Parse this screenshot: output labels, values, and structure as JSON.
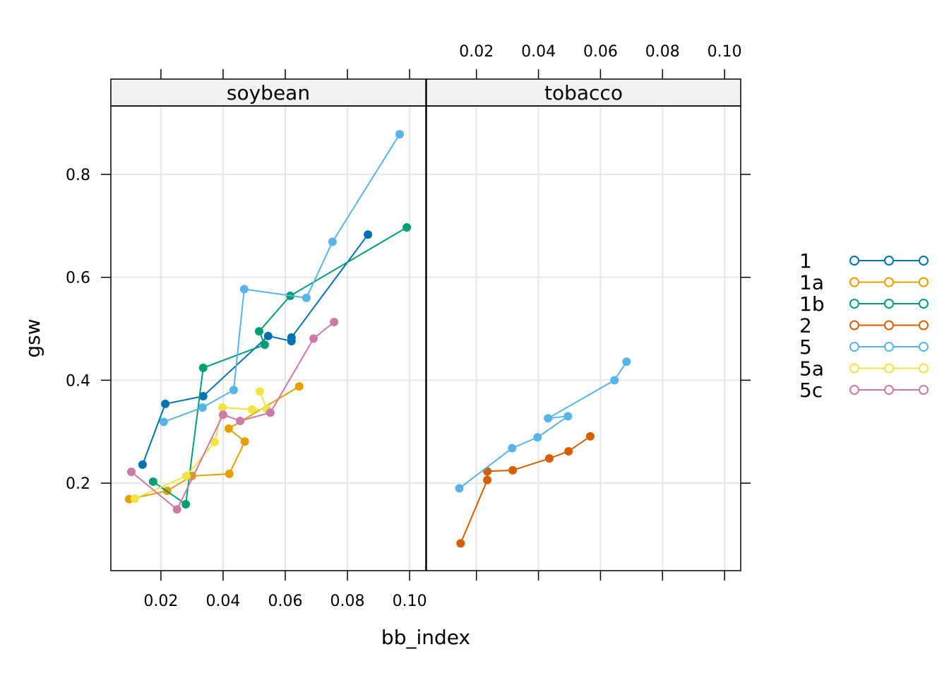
{
  "chart_data": {
    "type": "line",
    "xlabel": "bb_index",
    "ylabel": "gsw",
    "xlim": [
      0.0039,
      0.1052
    ],
    "ylim": [
      0.03,
      0.933
    ],
    "x_ticks": [
      "0.02",
      "0.04",
      "0.06",
      "0.08",
      "0.10"
    ],
    "x_tick_values": [
      0.02,
      0.04,
      0.06,
      0.08,
      0.1
    ],
    "y_ticks": [
      "0.2",
      "0.4",
      "0.6",
      "0.8"
    ],
    "y_tick_values": [
      0.2,
      0.4,
      0.6,
      0.8
    ],
    "grid": true,
    "legend_position": "right",
    "legend": [
      {
        "name": "1",
        "color": "#0072B2"
      },
      {
        "name": "1a",
        "color": "#E69F00"
      },
      {
        "name": "1b",
        "color": "#009E73"
      },
      {
        "name": "2",
        "color": "#D55E00"
      },
      {
        "name": "5",
        "color": "#56B4E9"
      },
      {
        "name": "5a",
        "color": "#F0E442"
      },
      {
        "name": "5c",
        "color": "#CC79A7"
      }
    ],
    "panels": [
      {
        "strip": "soybean",
        "series": [
          {
            "name": "1",
            "color": "#0072B2",
            "x": [
              0.0141,
              0.0214,
              0.0336,
              0.0545,
              0.062,
              0.062,
              0.0866
            ],
            "y": [
              0.236,
              0.354,
              0.369,
              0.486,
              0.476,
              0.483,
              0.683
            ]
          },
          {
            "name": "1a",
            "color": "#E69F00",
            "x": [
              0.0098,
              0.022,
              0.03,
              0.042,
              0.047,
              0.0418,
              0.0645
            ],
            "y": [
              0.169,
              0.185,
              0.214,
              0.218,
              0.281,
              0.306,
              0.388
            ]
          },
          {
            "name": "1b",
            "color": "#009E73",
            "x": [
              0.0175,
              0.028,
              0.0336,
              0.0534,
              0.0516,
              0.0616,
              0.0991
            ],
            "y": [
              0.203,
              0.159,
              0.424,
              0.469,
              0.495,
              0.564,
              0.697
            ]
          },
          {
            "name": "5",
            "color": "#56B4E9",
            "x": [
              0.0209,
              0.0334,
              0.0434,
              0.0468,
              0.0668,
              0.0752,
              0.0968
            ],
            "y": [
              0.319,
              0.347,
              0.381,
              0.577,
              0.56,
              0.669,
              0.878
            ]
          },
          {
            "name": "5a",
            "color": "#F0E442",
            "x": [
              0.0116,
              0.0282,
              0.0373,
              0.0398,
              0.0493,
              0.0541,
              0.0518
            ],
            "y": [
              0.17,
              0.214,
              0.28,
              0.347,
              0.343,
              0.344,
              0.378
            ]
          },
          {
            "name": "5c",
            "color": "#CC79A7",
            "x": [
              0.0105,
              0.0252,
              0.04,
              0.0455,
              0.0552,
              0.0691,
              0.0757
            ],
            "y": [
              0.222,
              0.149,
              0.333,
              0.321,
              0.337,
              0.481,
              0.513
            ]
          }
        ]
      },
      {
        "strip": "tobacco",
        "series": [
          {
            "name": "2",
            "color": "#D55E00",
            "x": [
              0.0149,
              0.0235,
              0.0235,
              0.0317,
              0.0435,
              0.0497,
              0.0567
            ],
            "y": [
              0.083,
              0.206,
              0.223,
              0.225,
              0.248,
              0.262,
              0.291
            ]
          },
          {
            "name": "5",
            "color": "#56B4E9",
            "x": [
              0.0145,
              0.0315,
              0.0397,
              0.0495,
              0.0431,
              0.0645,
              0.0684
            ],
            "y": [
              0.19,
              0.268,
              0.289,
              0.33,
              0.326,
              0.4,
              0.436
            ]
          }
        ]
      }
    ]
  }
}
